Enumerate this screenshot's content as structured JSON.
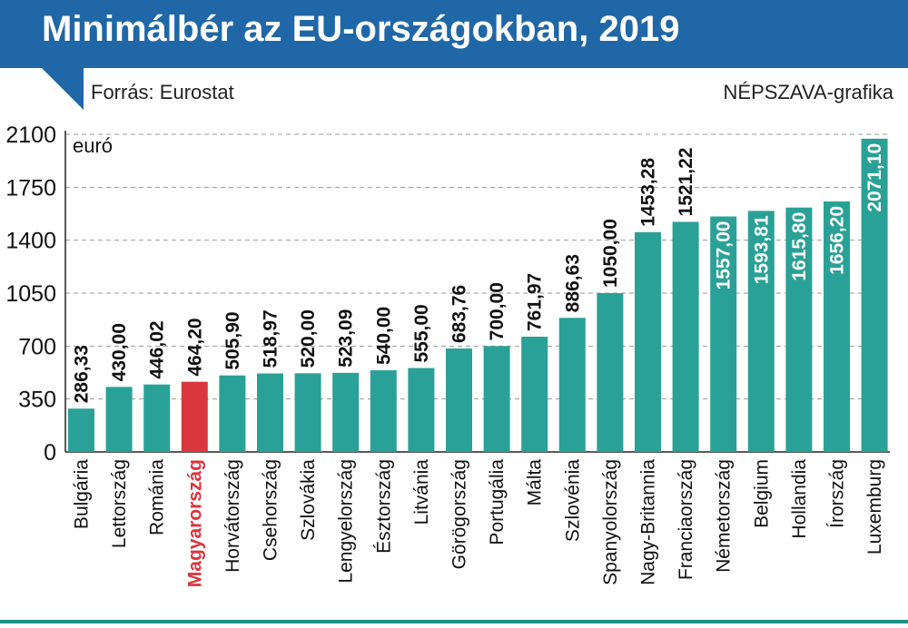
{
  "header": {
    "title": "Minimálbér az EU-országokban, 2019",
    "source": "Forrás: Eurostat",
    "credit": "NÉPSZAVA-grafika"
  },
  "colors": {
    "header_bg": "#1f67a6",
    "bar": "#2aa196",
    "highlight_bar": "#d9363e",
    "highlight_label": "#d9363e"
  },
  "chart_data": {
    "type": "bar",
    "unit_label": "euró",
    "categories": [
      "Bulgária",
      "Lettország",
      "Románia",
      "Magyarország",
      "Horvátország",
      "Csehország",
      "Szlovákia",
      "Lengyelország",
      "Észtország",
      "Litvánia",
      "Görögország",
      "Portugália",
      "Málta",
      "Szlovénia",
      "Spanyolország",
      "Nagy-Britannia",
      "Franciaország",
      "Németország",
      "Belgium",
      "Hollandia",
      "Írország",
      "Luxemburg"
    ],
    "values": [
      286.33,
      430.0,
      446.02,
      464.2,
      505.9,
      518.97,
      520.0,
      523.09,
      540.0,
      555.0,
      683.76,
      700.0,
      761.97,
      886.63,
      1050.0,
      1453.28,
      1521.22,
      1557.0,
      1593.81,
      1615.8,
      1656.2,
      2071.1
    ],
    "value_labels": [
      "286,33",
      "430,00",
      "446,02",
      "464,20",
      "505,90",
      "518,97",
      "520,00",
      "523,09",
      "540,00",
      "555,00",
      "683,76",
      "700,00",
      "761,97",
      "886,63",
      "1050,00",
      "1453,28",
      "1521,22",
      "1557,00",
      "1593,81",
      "1615,80",
      "1656,20",
      "2071,10"
    ],
    "label_inside_bar": [
      false,
      false,
      false,
      false,
      false,
      false,
      false,
      false,
      false,
      false,
      false,
      false,
      false,
      false,
      false,
      false,
      false,
      true,
      true,
      true,
      true,
      true
    ],
    "highlight": "Magyarország",
    "ylim": [
      0,
      2100
    ],
    "yticks": [
      0,
      350,
      700,
      1050,
      1400,
      1750,
      2100
    ],
    "grid": "dashed horizontal",
    "legend": "none"
  }
}
